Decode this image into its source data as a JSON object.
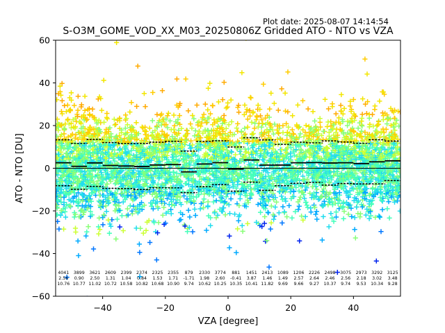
{
  "chart_data": {
    "type": "scatter",
    "plot_date": "Plot date: 2025-08-07 14:14:54",
    "title": "S-O3M_GOME_VOD_XX_M03_20250806Z Gridded ATO - NTO vs VZA",
    "xlabel": "VZA [degree]",
    "ylabel": "ATO - NTO [DU]",
    "xlim": [
      -55,
      55
    ],
    "ylim": [
      -60,
      60
    ],
    "x_ticks": [
      -40,
      -20,
      0,
      20,
      40
    ],
    "y_ticks": [
      -60,
      -40,
      -20,
      0,
      20,
      40,
      60
    ],
    "grid": false,
    "zero_line": true,
    "colors": {
      "scatter_palette": [
        "#0022ee",
        "#0077ff",
        "#00aaff",
        "#22ddee",
        "#44ffbb",
        "#88ff77",
        "#ccff33",
        "#f2e600",
        "#ffcc00",
        "#ffaa00"
      ],
      "mean_line": "#000000",
      "zero_line": "#000000"
    },
    "bins": {
      "vza_center": [
        -52.5,
        -47.5,
        -42.5,
        -37.5,
        -32.5,
        -27.5,
        -22.5,
        -17.5,
        -12.5,
        -7.5,
        -2.5,
        2.5,
        7.5,
        12.5,
        17.5,
        22.5,
        27.5,
        32.5,
        37.5,
        42.5,
        47.5,
        52.5
      ],
      "count": [
        "4041",
        "3899",
        "3621",
        "2609",
        "2399",
        "2374",
        "2325",
        "2355",
        "879",
        "2330",
        "3774",
        "881",
        "1451",
        "2413",
        "1089",
        "1206",
        "2226",
        "2498",
        "3075",
        "2973",
        "3292",
        "3125"
      ],
      "mean": [
        "2.56",
        "0.90",
        "2.50",
        "1.31",
        "1.04",
        "0.84",
        "1.53",
        "1.71",
        "-1.71",
        "1.98",
        "2.60",
        "-0.41",
        "3.87",
        "1.46",
        "1.49",
        "2.57",
        "2.64",
        "2.46",
        "2.56",
        "2.18",
        "3.02",
        "3.48"
      ],
      "stdev": [
        "10.76",
        "10.77",
        "11.02",
        "10.72",
        "10.58",
        "10.82",
        "10.68",
        "10.90",
        "9.74",
        "10.62",
        "10.25",
        "10.35",
        "10.41",
        "11.82",
        "9.69",
        "9.66",
        "9.27",
        "10.37",
        "9.74",
        "9.53",
        "10.34",
        "9.28"
      ]
    },
    "series": [
      {
        "type": "line",
        "x": [
          -52.5,
          -47.5,
          -42.5,
          -37.5,
          -32.5,
          -27.5,
          -22.5,
          -17.5,
          -12.5,
          -7.5,
          -2.5,
          2.5,
          7.5,
          12.5,
          17.5,
          22.5,
          27.5,
          32.5,
          37.5,
          42.5,
          47.5,
          52.5
        ],
        "values": [
          2.56,
          0.9,
          2.5,
          1.31,
          1.04,
          0.84,
          1.53,
          1.71,
          -1.71,
          1.98,
          2.6,
          -0.41,
          3.87,
          1.46,
          1.49,
          2.57,
          2.64,
          2.46,
          2.56,
          2.18,
          3.02,
          3.48
        ]
      },
      {
        "type": "dotted",
        "x": [
          -52.5,
          -47.5,
          -42.5,
          -37.5,
          -32.5,
          -27.5,
          -22.5,
          -17.5,
          -12.5,
          -7.5,
          -2.5,
          2.5,
          7.5,
          12.5,
          17.5,
          22.5,
          27.5,
          32.5,
          37.5,
          42.5,
          47.5,
          52.5
        ],
        "values": [
          13.32,
          11.67,
          13.52,
          12.03,
          11.62,
          11.66,
          12.21,
          12.61,
          8.03,
          12.6,
          12.85,
          9.94,
          14.28,
          13.28,
          11.18,
          12.23,
          11.91,
          12.83,
          12.3,
          11.71,
          13.36,
          12.76
        ]
      },
      {
        "type": "dotted",
        "x": [
          -52.5,
          -47.5,
          -42.5,
          -37.5,
          -32.5,
          -27.5,
          -22.5,
          -17.5,
          -12.5,
          -7.5,
          -2.5,
          2.5,
          7.5,
          12.5,
          17.5,
          22.5,
          27.5,
          32.5,
          37.5,
          42.5,
          47.5,
          52.5
        ],
        "values": [
          -8.2,
          -9.87,
          -8.52,
          -9.41,
          -9.54,
          -9.98,
          -9.15,
          -9.19,
          -11.45,
          -8.64,
          -7.65,
          -10.76,
          -6.54,
          -10.36,
          -8.2,
          -7.09,
          -6.63,
          -7.91,
          -7.18,
          -7.35,
          -7.32,
          -5.8
        ]
      }
    ]
  }
}
